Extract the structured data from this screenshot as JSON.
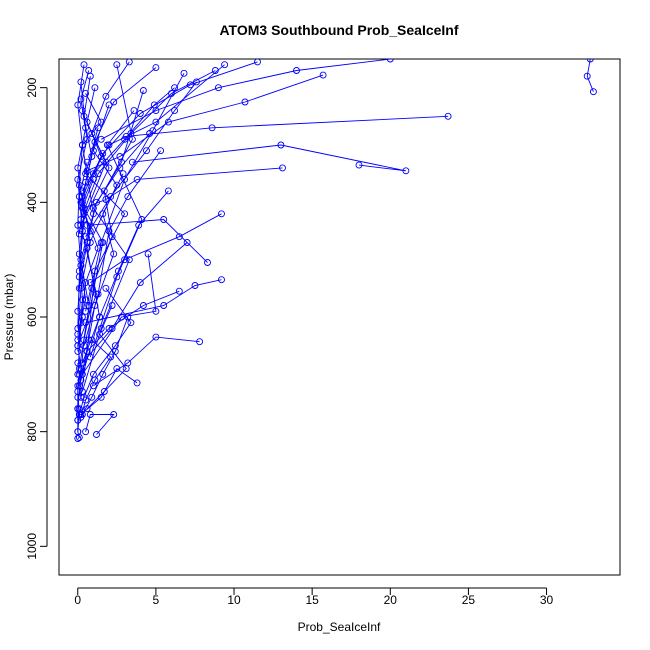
{
  "chart_data": {
    "type": "line",
    "title": "ATOM3 Southbound Prob_SeaIceInf",
    "xlabel": "Prob_SeaIceInf",
    "ylabel": "Pressure (mbar)",
    "xlim": [
      -1.2,
      34.7
    ],
    "ylim": [
      1050,
      150
    ],
    "y_reversed": true,
    "x_ticks": [
      0,
      5,
      10,
      15,
      20,
      25,
      30
    ],
    "y_ticks": [
      200,
      400,
      600,
      800,
      1000
    ],
    "x_tick_labels": [
      "0",
      "5",
      "10",
      "15",
      "20",
      "25",
      "30"
    ],
    "y_tick_labels": [
      "200",
      "400",
      "600",
      "800",
      "1000"
    ],
    "grid": false,
    "legend": "none",
    "color": "#0000ff",
    "markers": "open-circle",
    "note": "dense profile traces; values estimated from figure",
    "series": [
      {
        "x": [
          32.8,
          32.6,
          33.0
        ],
        "y": [
          150,
          180,
          207
        ]
      },
      {
        "x": [
          23.7,
          8.6,
          3.1
        ],
        "y": [
          250,
          270,
          285
        ]
      },
      {
        "x": [
          18.0,
          21.0,
          13.0,
          3.5
        ],
        "y": [
          335,
          345,
          300,
          330
        ]
      },
      {
        "x": [
          13.1,
          3.8,
          1.8,
          0.4
        ],
        "y": [
          340,
          360,
          395,
          410
        ]
      },
      {
        "x": [
          15.7,
          10.7,
          5.8,
          2.7,
          0.6
        ],
        "y": [
          178,
          225,
          260,
          320,
          345
        ]
      },
      {
        "x": [
          9.2,
          7.5,
          5.5,
          0.5
        ],
        "y": [
          535,
          545,
          580,
          610
        ]
      },
      {
        "x": [
          7.8,
          5.0,
          3.2,
          1.0
        ],
        "y": [
          643,
          635,
          680,
          720
        ]
      },
      {
        "x": [
          8.3,
          5.5,
          0.6
        ],
        "y": [
          505,
          430,
          440
        ]
      },
      {
        "x": [
          0.1,
          0.0,
          0.0,
          0.1,
          0.0
        ],
        "y": [
          760,
          780,
          800,
          810,
          812
        ]
      },
      {
        "x": [
          1.2,
          2.3,
          0.8,
          0.5
        ],
        "y": [
          805,
          770,
          770,
          800
        ]
      },
      {
        "x": [
          3.8,
          2.5,
          1.5,
          0.2
        ],
        "y": [
          715,
          690,
          740,
          770
        ]
      },
      {
        "x": [
          4.5,
          5.0,
          2.8,
          0.3
        ],
        "y": [
          490,
          590,
          600,
          700
        ]
      },
      {
        "x": [
          6.2,
          4.9,
          3.0,
          1.0
        ],
        "y": [
          200,
          230,
          290,
          350
        ]
      },
      {
        "x": [
          9.4,
          5.0,
          2.0,
          0.3
        ],
        "y": [
          160,
          260,
          300,
          380
        ]
      },
      {
        "x": [
          7.0,
          4.0,
          2.2,
          0.3
        ],
        "y": [
          470,
          540,
          620,
          680
        ]
      },
      {
        "x": [
          0.5,
          1.5,
          0.3,
          1.0,
          0.2,
          0.7
        ],
        "y": [
          210,
          260,
          300,
          420,
          500,
          580
        ]
      },
      {
        "x": [
          0.8,
          0.4,
          1.8,
          0.2,
          1.2,
          0.0
        ],
        "y": [
          180,
          250,
          330,
          440,
          560,
          650
        ]
      },
      {
        "x": [
          2.0,
          1.0,
          2.5,
          0.6,
          1.4,
          0.1
        ],
        "y": [
          230,
          310,
          370,
          480,
          600,
          720
        ]
      },
      {
        "x": [
          0.3,
          0.9,
          0.2,
          1.6,
          0.4,
          0.0
        ],
        "y": [
          240,
          320,
          400,
          470,
          640,
          760
        ]
      },
      {
        "x": [
          1.3,
          0.5,
          3.0,
          1.1,
          0.6,
          0.2
        ],
        "y": [
          270,
          350,
          420,
          520,
          660,
          740
        ]
      },
      {
        "x": [
          2.5,
          3.5,
          1.7,
          2.2,
          0.9,
          0.1
        ],
        "y": [
          160,
          290,
          380,
          460,
          550,
          690
        ]
      },
      {
        "x": [
          4.2,
          2.8,
          1.0,
          3.3,
          1.5,
          0.3
        ],
        "y": [
          205,
          330,
          410,
          500,
          620,
          730
        ]
      },
      {
        "x": [
          5.3,
          3.2,
          2.0,
          1.3,
          0.4
        ],
        "y": [
          310,
          390,
          450,
          560,
          650
        ]
      },
      {
        "x": [
          3.6,
          1.9,
          4.1,
          2.5,
          0.8
        ],
        "y": [
          240,
          300,
          430,
          530,
          670
        ]
      },
      {
        "x": [
          6.8,
          4.8,
          3.0,
          1.5,
          0.5
        ],
        "y": [
          175,
          275,
          360,
          470,
          590
        ]
      },
      {
        "x": [
          0.6,
          0.1,
          0.8,
          0.2,
          0.5,
          0.0
        ],
        "y": [
          330,
          390,
          450,
          510,
          570,
          630
        ]
      },
      {
        "x": [
          1.0,
          0.3,
          1.3,
          0.5,
          0.2,
          0.0
        ],
        "y": [
          360,
          410,
          480,
          540,
          610,
          700
        ]
      },
      {
        "x": [
          2.9,
          1.6,
          2.3,
          1.1,
          0.7,
          0.2
        ],
        "y": [
          350,
          420,
          490,
          580,
          640,
          710
        ]
      },
      {
        "x": [
          5.8,
          3.9,
          2.6,
          1.4,
          0.3
        ],
        "y": [
          380,
          440,
          520,
          600,
          680
        ]
      },
      {
        "x": [
          4.6,
          2.7,
          1.2,
          0.6,
          0.1
        ],
        "y": [
          280,
          340,
          400,
          470,
          550
        ]
      },
      {
        "x": [
          7.6,
          6.2,
          4.4,
          2.1,
          0.5
        ],
        "y": [
          190,
          240,
          310,
          390,
          460
        ]
      },
      {
        "x": [
          1.8,
          3.4,
          2.4,
          1.0,
          0.4,
          0.1
        ],
        "y": [
          550,
          610,
          650,
          700,
          740,
          770
        ]
      },
      {
        "x": [
          2.2,
          1.4,
          3.1,
          1.7,
          0.6
        ],
        "y": [
          580,
          630,
          690,
          730,
          760
        ]
      },
      {
        "x": [
          0.9,
          2.1,
          1.1,
          0.5,
          0.2
        ],
        "y": [
          640,
          670,
          710,
          745,
          775
        ]
      },
      {
        "x": [
          3.2,
          2.4,
          1.6,
          0.9,
          0.3
        ],
        "y": [
          600,
          660,
          700,
          740,
          770
        ]
      },
      {
        "x": [
          0.4,
          0.0,
          0.3,
          0.1,
          0.0,
          0.2,
          0.0
        ],
        "y": [
          160,
          230,
          300,
          370,
          440,
          510,
          590
        ]
      },
      {
        "x": [
          0.2,
          0.5,
          0.0,
          0.4,
          0.1,
          0.3,
          0.0
        ],
        "y": [
          190,
          270,
          340,
          420,
          490,
          570,
          660
        ]
      },
      {
        "x": [
          0.7,
          0.2,
          0.6,
          0.0,
          0.3,
          0.1,
          0.0
        ],
        "y": [
          170,
          220,
          290,
          360,
          450,
          530,
          620
        ]
      },
      {
        "x": [
          1.1,
          0.6,
          1.5,
          0.3,
          0.8,
          0.2,
          0.0
        ],
        "y": [
          200,
          260,
          320,
          390,
          470,
          550,
          640
        ]
      },
      {
        "x": [
          3.3,
          1.8,
          0.9,
          2.0,
          0.4,
          0.1
        ],
        "y": [
          155,
          215,
          280,
          340,
          430,
          520
        ]
      },
      {
        "x": [
          5.0,
          2.3,
          1.1,
          0.5,
          0.1
        ],
        "y": [
          165,
          225,
          295,
          365,
          455
        ]
      },
      {
        "x": [
          11.5,
          7.2,
          4.0,
          1.6,
          0.3
        ],
        "y": [
          155,
          195,
          245,
          315,
          400
        ]
      },
      {
        "x": [
          8.8,
          6.0,
          3.4,
          1.3,
          0.2
        ],
        "y": [
          170,
          210,
          280,
          350,
          430
        ]
      },
      {
        "x": [
          20.0,
          14.0,
          9.0,
          5.0,
          1.5
        ],
        "y": [
          150,
          170,
          200,
          240,
          290
        ]
      },
      {
        "x": [
          9.2,
          6.5,
          3.0,
          0.8
        ],
        "y": [
          420,
          460,
          500,
          540
        ]
      },
      {
        "x": [
          6.5,
          4.2,
          2.0,
          0.6
        ],
        "y": [
          555,
          580,
          620,
          660
        ]
      },
      {
        "x": [
          0.0,
          0.1,
          0.0,
          0.0,
          0.0,
          0.0
        ],
        "y": [
          680,
          700,
          720,
          740,
          760,
          780
        ]
      },
      {
        "x": [
          0.3,
          0.0,
          0.2,
          0.0,
          0.1,
          0.0
        ],
        "y": [
          600,
          650,
          690,
          730,
          770,
          800
        ]
      }
    ]
  }
}
